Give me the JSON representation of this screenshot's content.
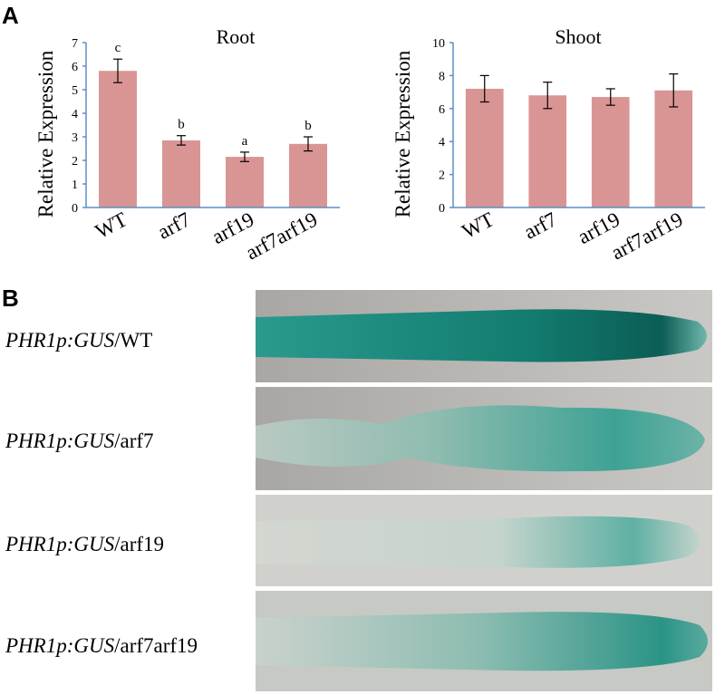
{
  "panel_labels": [
    "A",
    "B"
  ],
  "chart_data": [
    {
      "type": "bar",
      "title": "Root",
      "y_label": "Relative Expression",
      "categories": [
        "WT",
        "arf7",
        "arf19",
        "arf7arf19"
      ],
      "values": [
        5.8,
        2.85,
        2.15,
        2.7
      ],
      "errors": [
        0.5,
        0.2,
        0.2,
        0.3
      ],
      "value_annotations": [
        "c",
        "b",
        "a",
        "b"
      ],
      "color": "#d99594",
      "axis_color": "#5b8fc7",
      "ylim": [
        0,
        7
      ],
      "yticks": [
        0,
        1,
        2,
        3,
        4,
        5,
        6,
        7
      ]
    },
    {
      "type": "bar",
      "title": "Shoot",
      "y_label": "Relative Expression",
      "categories": [
        "WT",
        "arf7",
        "arf19",
        "arf7arf19"
      ],
      "values": [
        7.2,
        6.8,
        6.7,
        7.1
      ],
      "errors": [
        0.8,
        0.8,
        0.5,
        1.0
      ],
      "color": "#d99594",
      "axis_color": "#5b8fc7",
      "ylim": [
        0,
        10
      ],
      "yticks": [
        0,
        2,
        4,
        6,
        8,
        10
      ]
    }
  ],
  "images": [
    {
      "construct": "PHR1p:GUS",
      "genotype": "/WT"
    },
    {
      "construct": "PHR1p:GUS",
      "genotype": "/arf7"
    },
    {
      "construct": "PHR1p:GUS",
      "genotype": "/arf19"
    },
    {
      "construct": "PHR1p:GUS",
      "genotype": "/arf7arf19"
    }
  ]
}
